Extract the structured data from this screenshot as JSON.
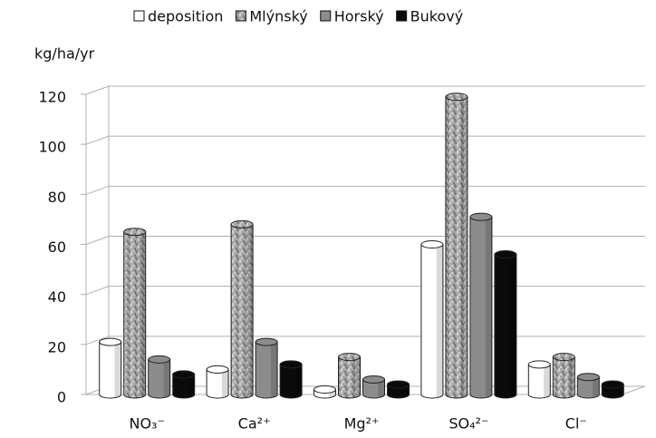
{
  "chart_data": {
    "type": "bar",
    "style": "3d-cylinder",
    "y_label": "kg/ha/yr",
    "categories": [
      "NO₃⁻",
      "Ca²⁺",
      "Mg²⁺",
      "SO₄²⁻",
      "Cl⁻"
    ],
    "series": [
      {
        "name": "deposition",
        "color": "#ffffff",
        "values": [
          21,
          10,
          2,
          60,
          12
        ]
      },
      {
        "name": "Mlýnský",
        "color": "#a8a8a8",
        "pattern": "dotted",
        "values": [
          65,
          68,
          15,
          119,
          15
        ]
      },
      {
        "name": "Horský",
        "color": "#8c8c8c",
        "values": [
          14,
          21,
          6,
          71,
          7
        ]
      },
      {
        "name": "Bukový",
        "color": "#0a0a0a",
        "values": [
          8,
          12,
          4,
          56,
          4
        ]
      }
    ],
    "ylim": [
      0,
      120
    ],
    "yticks": [
      0,
      20,
      40,
      60,
      80,
      100,
      120
    ],
    "grid": true,
    "legend": "top"
  }
}
